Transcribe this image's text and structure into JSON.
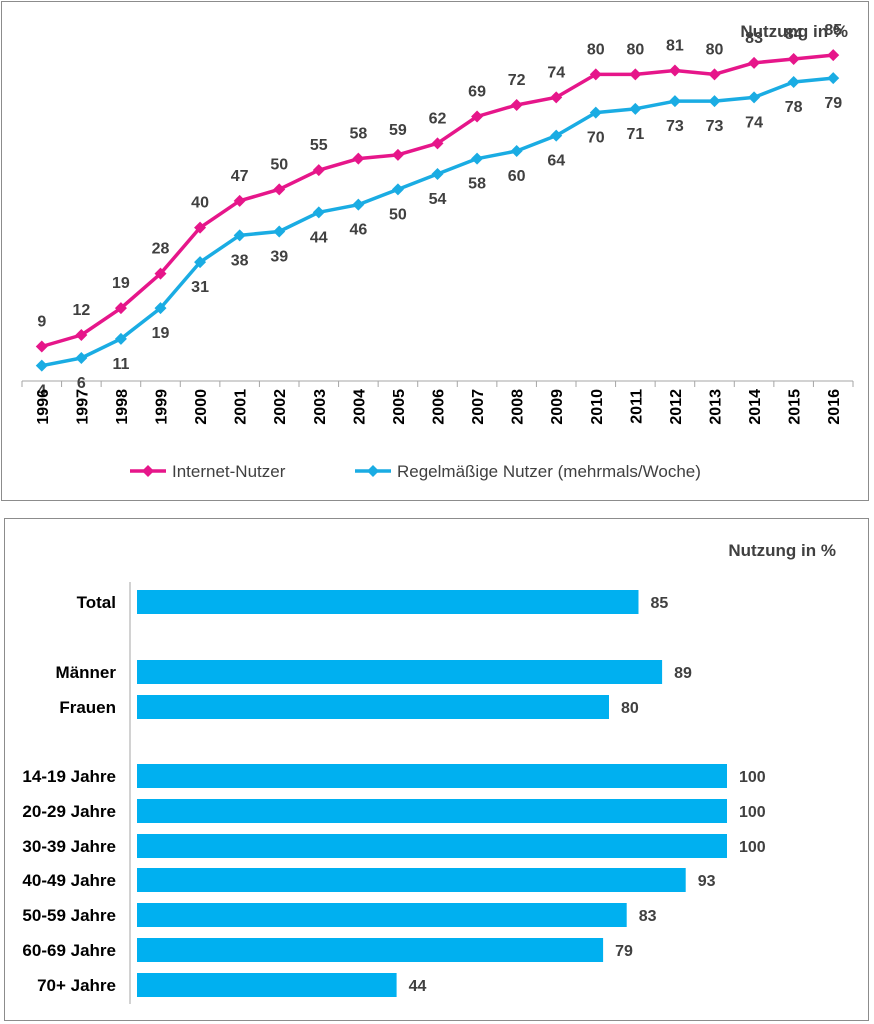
{
  "chart_data": [
    {
      "type": "line",
      "title": "",
      "unit_label": "Nutzung in %",
      "x": [
        "1996",
        "1997",
        "1998",
        "1999",
        "2000",
        "2001",
        "2002",
        "2003",
        "2004",
        "2005",
        "2006",
        "2007",
        "2008",
        "2009",
        "2010",
        "2011",
        "2012",
        "2013",
        "2014",
        "2015",
        "2016"
      ],
      "ylim": [
        0,
        90
      ],
      "grid": false,
      "legend_position": "bottom",
      "series": [
        {
          "name": "Internet-Nutzer",
          "color": "#e6168a",
          "values": [
            9,
            12,
            19,
            28,
            40,
            47,
            50,
            55,
            58,
            59,
            62,
            69,
            72,
            74,
            80,
            80,
            81,
            80,
            83,
            84,
            85
          ]
        },
        {
          "name": "Regelmäßige Nutzer (mehrmals/Woche)",
          "color": "#1aace3",
          "values": [
            4,
            6,
            11,
            19,
            31,
            38,
            39,
            44,
            46,
            50,
            54,
            58,
            60,
            64,
            70,
            71,
            73,
            73,
            74,
            78,
            79
          ]
        }
      ]
    },
    {
      "type": "bar",
      "orientation": "horizontal",
      "title": "",
      "unit_label": "Nutzung in %",
      "color": "#00b0f0",
      "xlim": [
        0,
        100
      ],
      "categories": [
        "Total",
        "Männer",
        "Frauen",
        "14-19 Jahre",
        "20-29 Jahre",
        "30-39 Jahre",
        "40-49 Jahre",
        "50-59 Jahre",
        "60-69 Jahre",
        "70+ Jahre"
      ],
      "values": [
        85,
        89,
        80,
        100,
        100,
        100,
        93,
        83,
        79,
        44
      ],
      "groups": [
        [
          "Total"
        ],
        [
          "Männer",
          "Frauen"
        ],
        [
          "14-19 Jahre",
          "20-29 Jahre",
          "30-39 Jahre",
          "40-49 Jahre",
          "50-59 Jahre",
          "60-69 Jahre",
          "70+ Jahre"
        ]
      ]
    }
  ]
}
